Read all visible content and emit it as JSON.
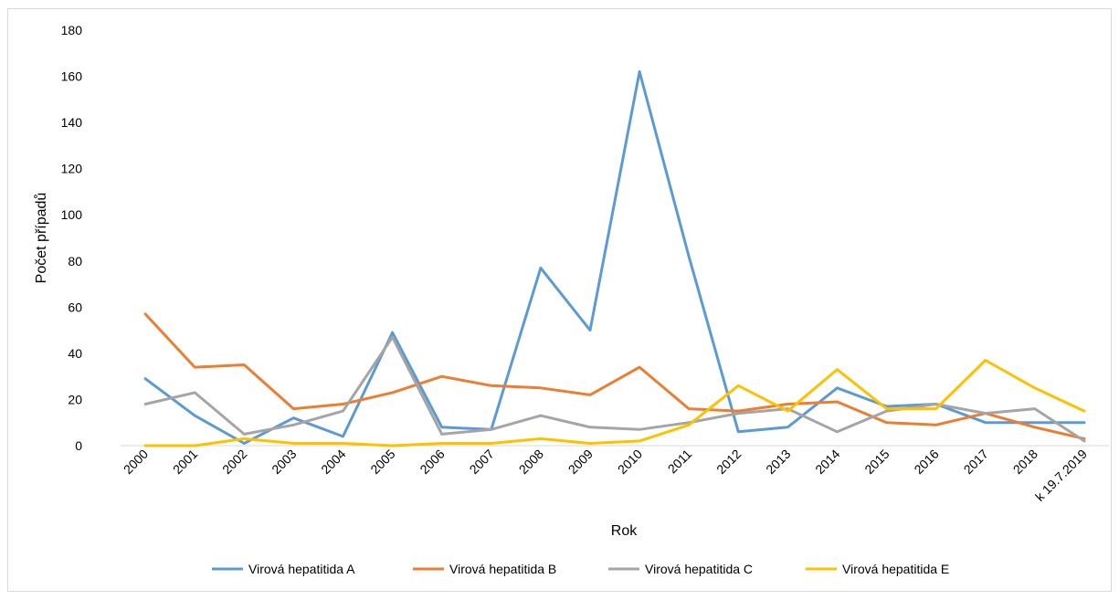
{
  "chart_data": {
    "type": "line",
    "title": "",
    "xlabel": "Rok",
    "ylabel": "Počet případů",
    "ylim": [
      0,
      180
    ],
    "yticks": [
      0,
      20,
      40,
      60,
      80,
      100,
      120,
      140,
      160,
      180
    ],
    "grid": false,
    "legend": "bottom",
    "categories": [
      "2000",
      "2001",
      "2002",
      "2003",
      "2004",
      "2005",
      "2006",
      "2007",
      "2008",
      "2009",
      "2010",
      "2011",
      "2012",
      "2013",
      "2014",
      "2015",
      "2016",
      "2017",
      "2018",
      "k 19.7.2019"
    ],
    "series": [
      {
        "name": "Virová hepatitida A",
        "color": "#5b9bd5",
        "values": [
          29,
          13,
          1,
          12,
          4,
          49,
          8,
          7,
          77,
          50,
          162,
          82,
          6,
          8,
          25,
          17,
          18,
          10,
          10,
          10
        ]
      },
      {
        "name": "Virová hepatitida B",
        "color": "#ed7d31",
        "values": [
          57,
          34,
          35,
          16,
          18,
          23,
          30,
          26,
          25,
          22,
          34,
          16,
          15,
          18,
          19,
          10,
          9,
          14,
          8,
          3
        ]
      },
      {
        "name": "Virová hepatitida C",
        "color": "#a5a5a5",
        "values": [
          18,
          23,
          5,
          9,
          15,
          47,
          5,
          7,
          13,
          8,
          7,
          10,
          14,
          16,
          6,
          15,
          18,
          14,
          16,
          2
        ]
      },
      {
        "name": "Virová hepatitida E",
        "color": "#ffc000",
        "values": [
          0,
          0,
          3,
          1,
          1,
          0,
          1,
          1,
          3,
          1,
          2,
          9,
          26,
          15,
          33,
          16,
          16,
          37,
          25,
          15
        ]
      }
    ]
  }
}
